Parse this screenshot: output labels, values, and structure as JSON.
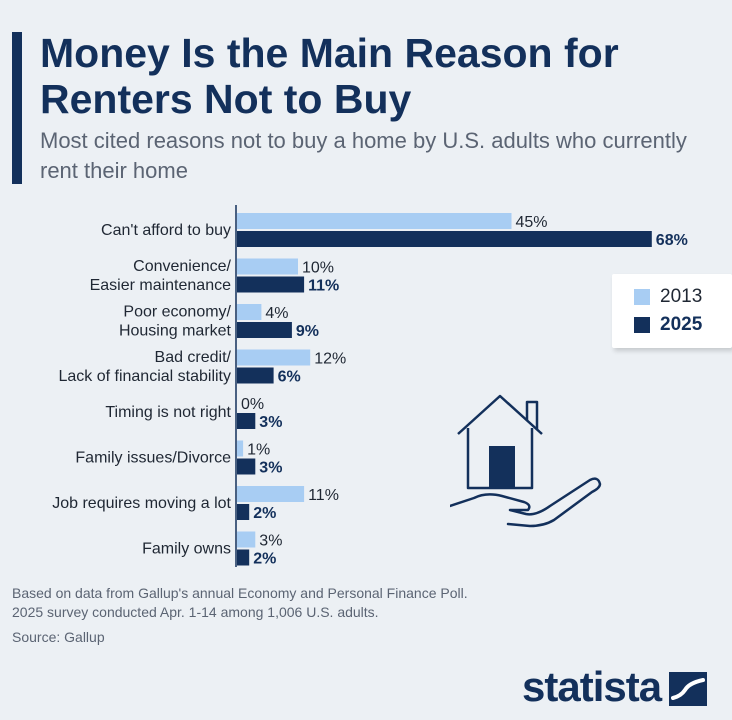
{
  "header": {
    "title": "Money Is the Main Reason for Renters Not to Buy",
    "subtitle": "Most cited reasons not to buy a home by U.S. adults who currently rent their home"
  },
  "colors": {
    "accent": "#13305b",
    "series_2013": "#a8cdf3",
    "series_2025": "#13305b"
  },
  "chart_data": {
    "type": "bar",
    "orientation": "horizontal",
    "categories": [
      [
        "Can't afford to buy"
      ],
      [
        "Convenience/",
        "Easier maintenance"
      ],
      [
        "Poor economy/",
        "Housing market"
      ],
      [
        "Bad credit/",
        "Lack of financial stability"
      ],
      [
        "Timing is not right"
      ],
      [
        "Family issues/Divorce"
      ],
      [
        "Job requires moving a lot"
      ],
      [
        "Family owns"
      ]
    ],
    "series": [
      {
        "name": "2013",
        "values": [
          45,
          10,
          4,
          12,
          0,
          1,
          11,
          3
        ],
        "color": "#a8cdf3"
      },
      {
        "name": "2025",
        "values": [
          68,
          11,
          9,
          6,
          3,
          3,
          2,
          2
        ],
        "color": "#13305b"
      }
    ],
    "value_suffix": "%",
    "legend_position": "right",
    "grid": false
  },
  "legend": {
    "items": [
      {
        "label": "2013"
      },
      {
        "label": "2025"
      }
    ]
  },
  "footer": {
    "note_line1": "Based on data from Gallup's annual Economy and Personal Finance Poll.",
    "note_line2": "2025 survey conducted Apr. 1-14 among 1,006 U.S. adults.",
    "source": "Source: Gallup",
    "brand": "statista"
  },
  "icons": {
    "illustration": "house-in-hand-icon",
    "brand": "statista-logo-icon"
  }
}
